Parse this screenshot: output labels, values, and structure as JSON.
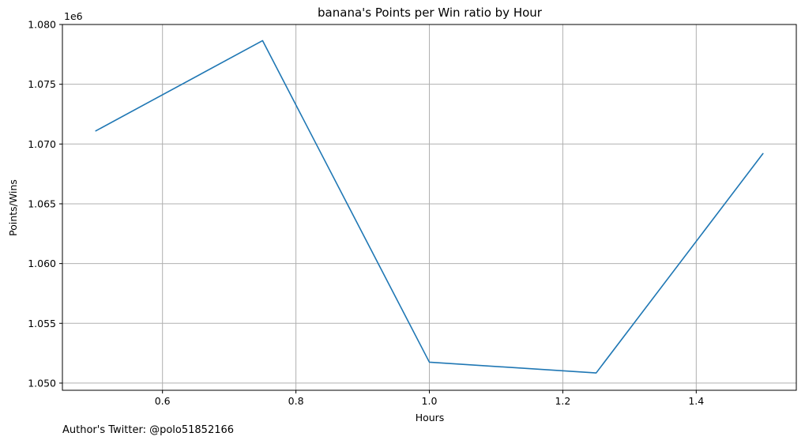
{
  "chart_data": {
    "type": "line",
    "title": "banana's Points per Win ratio by Hour",
    "xlabel": "Hours",
    "ylabel": "Points/Wins",
    "y_offset_label": "1e6",
    "x": [
      0.5,
      0.75,
      1.0,
      1.25,
      1.5
    ],
    "series": [
      {
        "values": [
          1071100,
          1078650,
          1051750,
          1050850,
          1069200
        ]
      }
    ],
    "xlim": [
      0.45,
      1.55
    ],
    "ylim": [
      1.0494,
      1.08
    ],
    "y_display_scale": 1000000,
    "x_ticks": [
      0.6,
      0.8,
      1.0,
      1.2,
      1.4
    ],
    "x_tick_labels": [
      "0.6",
      "0.8",
      "1.0",
      "1.2",
      "1.4"
    ],
    "y_ticks": [
      1.05,
      1.055,
      1.06,
      1.065,
      1.07,
      1.075,
      1.08
    ],
    "y_tick_labels": [
      "1.050",
      "1.055",
      "1.060",
      "1.065",
      "1.070",
      "1.075",
      "1.080"
    ],
    "grid": true,
    "line_color": "#1f77b4",
    "grid_color": "#b0b0b0"
  },
  "footer": {
    "text": "Author's Twitter: @polo51852166"
  }
}
